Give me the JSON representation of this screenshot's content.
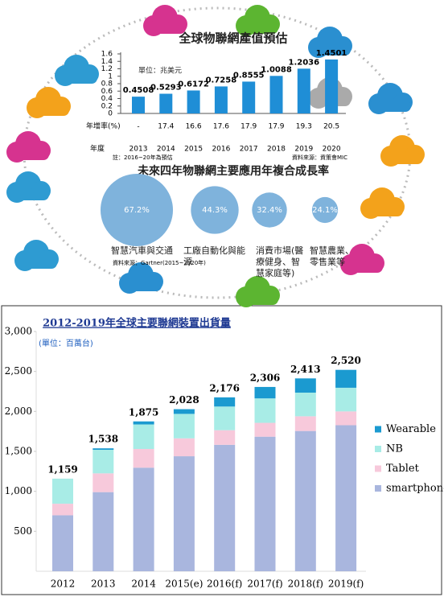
{
  "chart_data": [
    {
      "type": "bar",
      "title": "全球物聯網產值預估",
      "subtitle": "單位：兆美元",
      "x_label": "年度",
      "categories": [
        "2013",
        "2014",
        "2015",
        "2016",
        "2017",
        "2018",
        "2019",
        "2020"
      ],
      "values": [
        0.4508,
        0.5293,
        0.6172,
        0.7258,
        0.8555,
        1.0088,
        1.2036,
        1.4501
      ],
      "color": "#1f8ed6",
      "ylim": [
        0,
        1.6
      ],
      "yticks": [
        0,
        0.2,
        0.4,
        0.6,
        0.8,
        1,
        1.2,
        1.4,
        1.6
      ],
      "growth_rate": {
        "label": "年增率(%)",
        "values": [
          "-",
          17.4,
          16.6,
          17.6,
          17.9,
          17.9,
          19.3,
          20.5
        ]
      },
      "note": "註：2016~20年為預估",
      "source": "資料來源：資策會MIC"
    },
    {
      "type": "bubble",
      "title": "未來四年物聯網主要應用年複合成長率",
      "categories": [
        "智慧汽車與交通",
        "工廠自動化與能源",
        "消費市場(醫療健身、智慧家庭等)",
        "智慧農業、零售業等"
      ],
      "values": [
        67.2,
        44.3,
        32.4,
        24.1
      ],
      "value_labels": [
        "67.2%",
        "44.3%",
        "32.4%",
        "24.1%"
      ],
      "color": "#7fb3dc",
      "source": "資料來源：Gartner(2015~2020年)"
    },
    {
      "type": "stacked_bar",
      "title": "2012-2019年全球主要聯網裝置出貨量",
      "subtitle": "(單位：百萬台)",
      "categories": [
        "2012",
        "2013",
        "2014",
        "2015(e)",
        "2016(f)",
        "2017(f)",
        "2018(f)",
        "2019(f)"
      ],
      "series": [
        {
          "name": "smartphone",
          "color": "#a9b6de",
          "values": [
            700,
            990,
            1296,
            1439,
            1582,
            1684,
            1755,
            1827
          ]
        },
        {
          "name": "Tablet",
          "color": "#f7c9db",
          "values": [
            145,
            235,
            234,
            224,
            183,
            173,
            184,
            173
          ]
        },
        {
          "name": "NB",
          "color": "#a8ece6",
          "values": [
            314,
            295,
            307,
            306,
            296,
            306,
            296,
            296
          ]
        },
        {
          "name": "Wearable",
          "color": "#1b9ad0",
          "values": [
            0,
            18,
            38,
            59,
            115,
            143,
            178,
            224
          ]
        }
      ],
      "totals": {
        "values": [
          1159,
          1538,
          1875,
          2028,
          2176,
          2306,
          2413,
          2520
        ],
        "value_labels": [
          "1,159",
          "1,538",
          "1,875",
          "2,028",
          "2,176",
          "2,306",
          "2,413",
          "2,520"
        ]
      },
      "ylim": [
        0,
        3000
      ],
      "yticks": [
        500,
        {
          "value": 1000,
          "label": "1,000"
        },
        {
          "value": 1500,
          "label": "1,500"
        },
        {
          "value": 2000,
          "label": "2,000"
        },
        {
          "value": 2500,
          "label": "2,500"
        },
        {
          "value": 3000,
          "label": "3,000"
        }
      ],
      "legend": "right"
    }
  ]
}
